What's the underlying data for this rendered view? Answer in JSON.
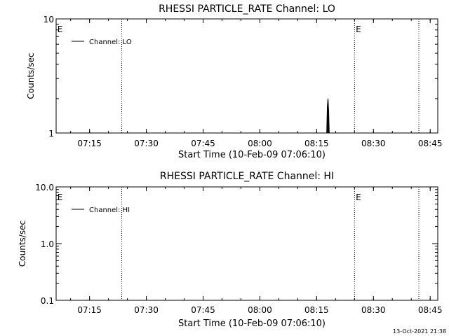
{
  "chart_data": [
    {
      "type": "line",
      "title": "RHESSI PARTICLE_RATE Channel: LO",
      "xlabel": "Start Time (10-Feb-09 07:06:10)",
      "ylabel": "Counts/sec",
      "yscale": "log",
      "ylim": [
        1,
        10
      ],
      "xlim": [
        "07:06:10",
        "08:47:00"
      ],
      "y_ticks": [
        "1",
        "10"
      ],
      "x_ticks": [
        "07:15",
        "07:30",
        "07:45",
        "08:00",
        "08:15",
        "08:30",
        "08:45"
      ],
      "legend": "Channel: LO",
      "legend_position": "top-left",
      "grid": false,
      "series": [
        {
          "name": "Channel: LO",
          "x": [
            "08:17:40",
            "08:17:50",
            "08:18:00",
            "08:18:10",
            "08:18:20"
          ],
          "y": [
            1,
            1.7,
            2.0,
            1.6,
            1
          ]
        }
      ],
      "event_lines": [
        "07:23:30",
        "08:25:00",
        "08:42:00"
      ],
      "event_markers": [
        {
          "x": "07:06:30",
          "label": "E"
        },
        {
          "x": "08:25:20",
          "label": "E"
        }
      ]
    },
    {
      "type": "line",
      "title": "RHESSI PARTICLE_RATE Channel: HI",
      "xlabel": "Start Time (10-Feb-09 07:06:10)",
      "ylabel": "Counts/sec",
      "yscale": "log",
      "ylim": [
        0.1,
        10
      ],
      "xlim": [
        "07:06:10",
        "08:47:00"
      ],
      "y_ticks": [
        "0.1",
        "1.0",
        "10.0"
      ],
      "x_ticks": [
        "07:15",
        "07:30",
        "07:45",
        "08:00",
        "08:15",
        "08:30",
        "08:45"
      ],
      "legend": "Channel: HI",
      "legend_position": "top-left",
      "grid": false,
      "series": [
        {
          "name": "Channel: HI",
          "x": [],
          "y": []
        }
      ],
      "event_lines": [
        "07:23:30",
        "08:25:00",
        "08:42:00"
      ],
      "event_markers": [
        {
          "x": "07:06:30",
          "label": "E"
        },
        {
          "x": "08:25:20",
          "label": "E"
        }
      ]
    }
  ],
  "footer": {
    "timestamp": "13-Oct-2021 21:38"
  },
  "colors": {
    "background": "#ffffff",
    "foreground": "#000000"
  }
}
